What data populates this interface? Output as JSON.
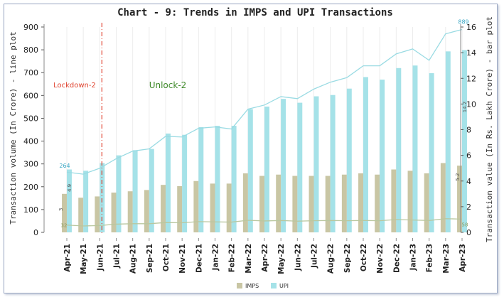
{
  "chart_data": {
    "type": "bar+line",
    "title": "Chart - 9: Trends in IMPS and UPI Transactions",
    "ylabel_left": "Transaction volume (In Crore) - line plot",
    "ylabel_right": "Transaction value (In Rs. Lakh Crore) - bar plot",
    "left_ticks": [
      "0",
      "100",
      "200",
      "300",
      "400",
      "500",
      "600",
      "700",
      "800",
      "900"
    ],
    "right_ticks": [
      "0",
      "2",
      "4",
      "6",
      "8",
      "10",
      "12",
      "14",
      "16"
    ],
    "ylim_left": [
      0,
      900
    ],
    "ylim_right": [
      0,
      16
    ],
    "categories": [
      "Apr-21",
      "May-21",
      "Jun-21",
      "Jul-21",
      "Aug-21",
      "Sep-21",
      "Oct-21",
      "Nov-21",
      "Dec-21",
      "Jan-22",
      "Feb-22",
      "Mar-22",
      "Apr-22",
      "May-22",
      "Jun-22",
      "Jul-22",
      "Aug-22",
      "Sep-22",
      "Oct-22",
      "Nov-22",
      "Dec-22",
      "Jan-23",
      "Feb-23",
      "Mar-23",
      "Apr-23"
    ],
    "bars": [
      {
        "name": "IMPS",
        "color": "#c9c6a4",
        "values": [
          3.0,
          2.7,
          2.8,
          3.1,
          3.2,
          3.3,
          3.7,
          3.6,
          4.0,
          3.8,
          3.8,
          4.6,
          4.4,
          4.5,
          4.4,
          4.4,
          4.4,
          4.5,
          4.6,
          4.5,
          4.9,
          4.8,
          4.6,
          5.4,
          5.2
        ]
      },
      {
        "name": "UPI",
        "color": "#a5e2e8",
        "values": [
          4.9,
          4.8,
          5.4,
          6.0,
          6.4,
          6.5,
          7.7,
          7.6,
          8.2,
          8.3,
          8.3,
          9.6,
          9.8,
          10.4,
          10.1,
          10.6,
          10.7,
          11.2,
          12.1,
          11.9,
          12.8,
          13.0,
          12.4,
          14.1,
          14.2
        ]
      }
    ],
    "lines": [
      {
        "name": "UPI volume",
        "color": "#9adbe3",
        "values": [
          264,
          255,
          281,
          323,
          356,
          366,
          421,
          418,
          456,
          462,
          453,
          540,
          558,
          595,
          586,
          628,
          658,
          678,
          730,
          730,
          782,
          804,
          754,
          870,
          889
        ]
      },
      {
        "name": "IMPS volume",
        "color": "#b9c79f",
        "values": [
          32,
          28,
          30,
          36,
          38,
          38,
          43,
          42,
          47,
          46,
          45,
          53,
          50,
          52,
          49,
          51,
          52,
          51,
          52,
          51,
          56,
          54,
          52,
          60,
          58
        ]
      }
    ],
    "data_labels": [
      {
        "series": "UPI volume",
        "category": "Apr-21",
        "text": "264"
      },
      {
        "series": "UPI volume",
        "category": "Apr-23",
        "text": "889"
      },
      {
        "series": "IMPS volume",
        "category": "Apr-21",
        "text": "32"
      },
      {
        "series": "IMPS volume",
        "category": "Apr-23",
        "text": "58"
      },
      {
        "series": "UPI",
        "category": "Apr-21",
        "text": "4.9"
      },
      {
        "series": "UPI",
        "category": "Apr-23",
        "text": "14.2"
      },
      {
        "series": "IMPS",
        "category": "Apr-21",
        "text": "3"
      },
      {
        "series": "IMPS",
        "category": "Apr-23",
        "text": "5.2"
      }
    ],
    "annotations": [
      {
        "text": "Lockdown-2",
        "color": "#e0432f"
      },
      {
        "text": "Unlock-2",
        "color": "#3f8a2a"
      }
    ],
    "marker_line_after": "Jun-21",
    "legend": {
      "position": "bottom",
      "items": [
        {
          "name": "IMPS",
          "color": "#c9c6a4"
        },
        {
          "name": "UPI",
          "color": "#a5e2e8"
        }
      ]
    },
    "grid": "vertical"
  }
}
